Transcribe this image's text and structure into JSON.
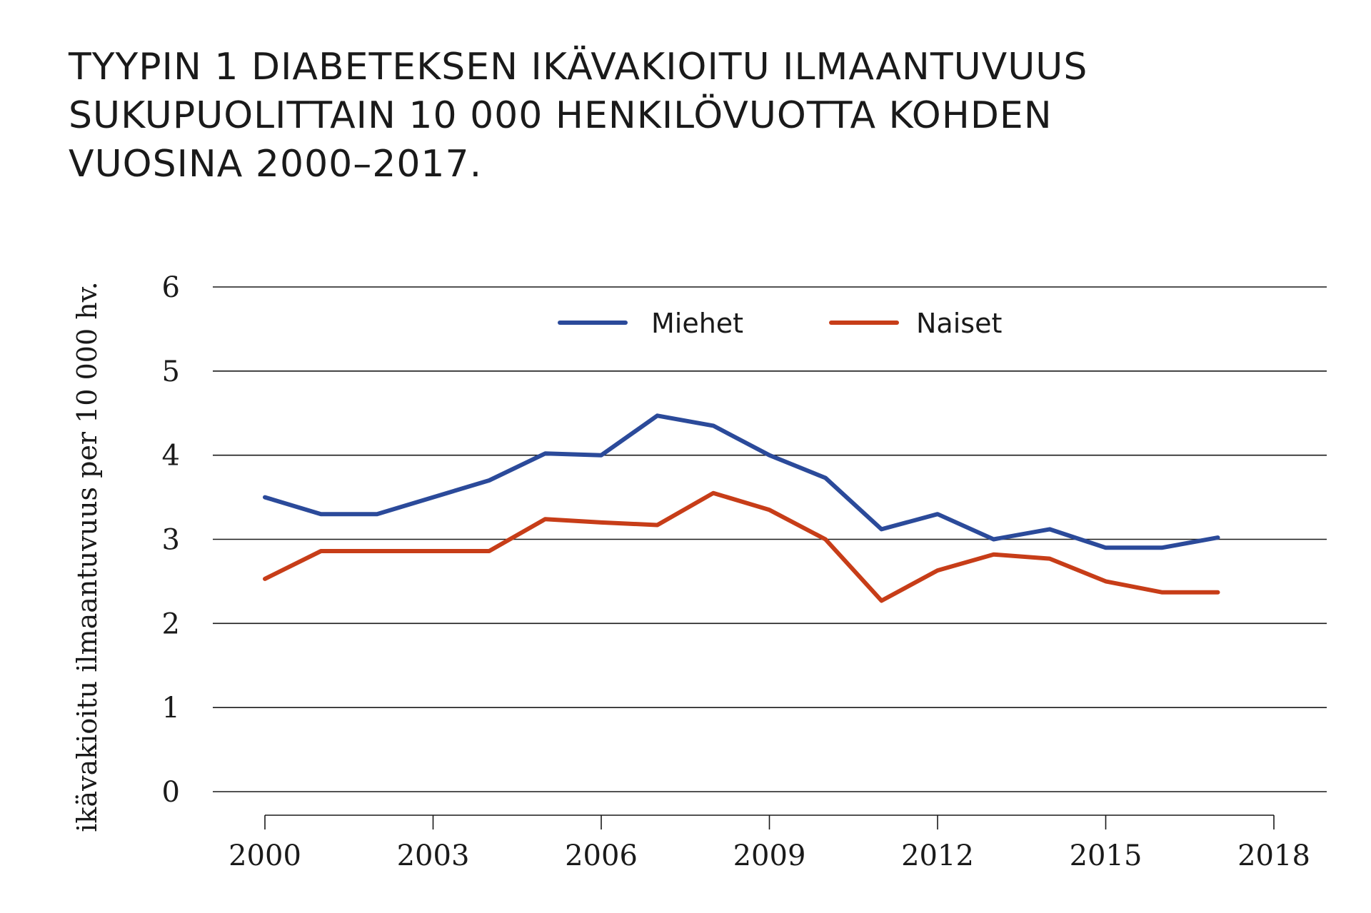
{
  "title_lines": [
    "TYYPIN 1 DIABETEKSEN IKÄVAKIOITU ILMAANTUVUUS",
    "SUKUPUOLITTAIN 10 000 HENKILÖVUOTTA KOHDEN",
    "VUOSINA 2000–2017."
  ],
  "colors": {
    "miehet": "#2b4a9a",
    "naiset": "#c73d18",
    "grid": "#1a1a1a"
  },
  "chart_data": {
    "type": "line",
    "title": "TYYPIN 1 DIABETEKSEN IKÄVAKIOITU ILMAANTUVUUS SUKUPUOLITTAIN 10 000 HENKILÖVUOTTA KOHDEN VUOSINA 2000–2017.",
    "xlabel": "",
    "ylabel": "ikävakioitu ilmaantuvuus per 10 000 hv.",
    "x": [
      2000,
      2001,
      2002,
      2003,
      2004,
      2005,
      2006,
      2007,
      2008,
      2009,
      2010,
      2011,
      2012,
      2013,
      2014,
      2015,
      2016,
      2017
    ],
    "xlim": [
      2000,
      2018
    ],
    "ylim": [
      0,
      6
    ],
    "xticks": [
      "2000",
      "2003",
      "2006",
      "2009",
      "2012",
      "2015",
      "2018"
    ],
    "xtick_values": [
      2000,
      2003,
      2006,
      2009,
      2012,
      2015,
      2018
    ],
    "yticks": [
      "0",
      "1",
      "2",
      "3",
      "4",
      "5",
      "6"
    ],
    "ytick_values": [
      0,
      1,
      2,
      3,
      4,
      5,
      6
    ],
    "grid": "horizontal",
    "legend_position": "top-center",
    "series": [
      {
        "name": "Miehet",
        "color": "#2b4a9a",
        "values": [
          3.5,
          3.3,
          3.3,
          3.5,
          3.7,
          4.02,
          4.0,
          4.47,
          4.35,
          4.0,
          3.73,
          3.12,
          3.3,
          3.0,
          3.12,
          2.9,
          2.9,
          3.02
        ]
      },
      {
        "name": "Naiset",
        "color": "#c73d18",
        "values": [
          2.53,
          2.86,
          2.86,
          2.86,
          2.86,
          3.24,
          3.2,
          3.17,
          3.55,
          3.35,
          3.0,
          2.27,
          2.63,
          2.82,
          2.77,
          2.5,
          2.37,
          2.37
        ]
      }
    ]
  }
}
